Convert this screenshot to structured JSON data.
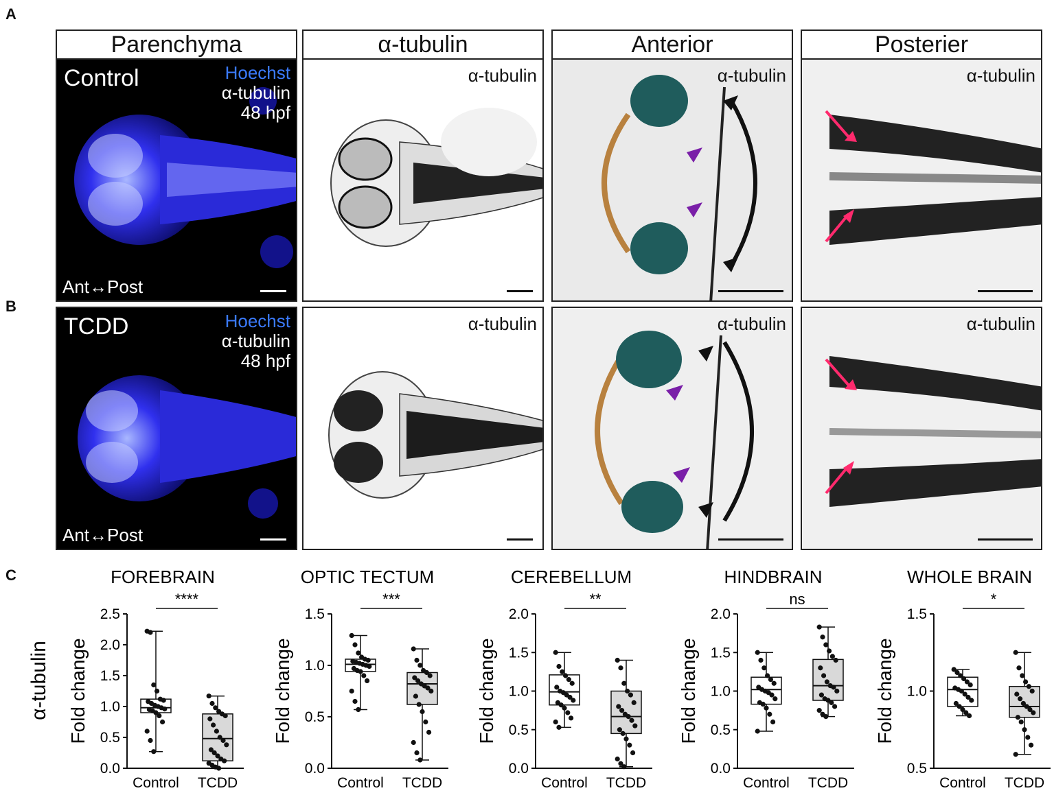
{
  "panel_letters": {
    "a": "A",
    "b": "B",
    "c": "C"
  },
  "headers": {
    "col1": "Parenchyma",
    "col2": "α-tubulin",
    "col3": "Anterior",
    "col4": "Posterier"
  },
  "rows": {
    "a": {
      "condition": "Control",
      "stain1": "Hoechst",
      "stain2": "α-tubulin",
      "stage": "48 hpf",
      "axis": "Ant↔Post",
      "inset_label": "α-tubulin"
    },
    "b": {
      "condition": "TCDD",
      "stain1": "Hoechst",
      "stain2": "α-tubulin",
      "stage": "48 hpf",
      "axis": "Ant↔Post",
      "inset_label": "α-tubulin"
    }
  },
  "colors": {
    "hoechst": "#3b7bff",
    "brain_blue": "#2626e6",
    "teal_region": "#1f5c5c",
    "brown_outline": "#b8813f",
    "purple_arrow": "#7a1fa8",
    "pink_arrow": "#ff2a6d",
    "box_fill": "#d9d9d9"
  },
  "row_axis_label": "α-tubulin",
  "chart_data": [
    {
      "type": "box",
      "title": "FOREBRAIN",
      "ylabel": "Fold change",
      "categories": [
        "Control",
        "TCDD"
      ],
      "ylim": [
        0.0,
        2.5
      ],
      "yticks": [
        "0.0",
        "0.5",
        "1.0",
        "1.5",
        "2.0",
        "2.5"
      ],
      "significance": "****",
      "boxes": [
        {
          "min": 0.27,
          "q1": 0.9,
          "median": 0.98,
          "q3": 1.12,
          "max": 2.22
        },
        {
          "min": 0.0,
          "q1": 0.12,
          "median": 0.48,
          "q3": 0.88,
          "max": 1.17
        }
      ],
      "points": [
        [
          2.22,
          2.2,
          1.35,
          1.25,
          1.12,
          1.1,
          1.08,
          1.05,
          1.02,
          1.0,
          0.98,
          0.96,
          0.95,
          0.93,
          0.9,
          0.85,
          0.75,
          0.6,
          0.45,
          0.27
        ],
        [
          1.17,
          1.05,
          0.98,
          0.92,
          0.88,
          0.85,
          0.8,
          0.7,
          0.6,
          0.5,
          0.45,
          0.38,
          0.3,
          0.25,
          0.2,
          0.15,
          0.12,
          0.08,
          0.05,
          0.02,
          0.0
        ]
      ]
    },
    {
      "type": "box",
      "title": "OPTIC TECTUM",
      "ylabel": "Fold change",
      "categories": [
        "Control",
        "TCDD"
      ],
      "ylim": [
        0.0,
        1.5
      ],
      "yticks": [
        "0.0",
        "0.5",
        "1.0",
        "1.5"
      ],
      "significance": "***",
      "boxes": [
        {
          "min": 0.57,
          "q1": 0.94,
          "median": 1.01,
          "q3": 1.06,
          "max": 1.29
        },
        {
          "min": 0.08,
          "q1": 0.62,
          "median": 0.82,
          "q3": 0.93,
          "max": 1.16
        }
      ],
      "points": [
        [
          1.29,
          1.2,
          1.12,
          1.08,
          1.06,
          1.05,
          1.04,
          1.03,
          1.02,
          1.01,
          1.0,
          0.99,
          0.97,
          0.95,
          0.94,
          0.9,
          0.85,
          0.75,
          0.65,
          0.57
        ],
        [
          1.16,
          1.05,
          1.0,
          0.95,
          0.93,
          0.9,
          0.88,
          0.85,
          0.82,
          0.8,
          0.78,
          0.75,
          0.7,
          0.62,
          0.55,
          0.45,
          0.35,
          0.25,
          0.15,
          0.08
        ]
      ]
    },
    {
      "type": "box",
      "title": "CEREBELLUM",
      "ylabel": "Fold change",
      "categories": [
        "Control",
        "TCDD"
      ],
      "ylim": [
        0.0,
        2.0
      ],
      "yticks": [
        "0.0",
        "0.5",
        "1.0",
        "1.5",
        "2.0"
      ],
      "significance": "**",
      "boxes": [
        {
          "min": 0.53,
          "q1": 0.82,
          "median": 0.99,
          "q3": 1.21,
          "max": 1.5
        },
        {
          "min": 0.02,
          "q1": 0.45,
          "median": 0.67,
          "q3": 1.0,
          "max": 1.4
        }
      ],
      "points": [
        [
          1.5,
          1.32,
          1.25,
          1.2,
          1.15,
          1.1,
          1.05,
          1.0,
          0.98,
          0.95,
          0.92,
          0.88,
          0.85,
          0.82,
          0.78,
          0.72,
          0.65,
          0.6,
          0.53
        ],
        [
          1.4,
          1.3,
          1.1,
          1.0,
          0.95,
          0.85,
          0.8,
          0.75,
          0.7,
          0.67,
          0.62,
          0.55,
          0.5,
          0.45,
          0.38,
          0.3,
          0.2,
          0.12,
          0.06,
          0.02
        ]
      ]
    },
    {
      "type": "box",
      "title": "HINDBRAIN",
      "ylabel": "Fold change",
      "categories": [
        "Control",
        "TCDD"
      ],
      "ylim": [
        0.0,
        2.0
      ],
      "yticks": [
        "0.0",
        "0.5",
        "1.0",
        "1.5",
        "2.0"
      ],
      "significance": "ns",
      "boxes": [
        {
          "min": 0.48,
          "q1": 0.83,
          "median": 1.02,
          "q3": 1.18,
          "max": 1.5
        },
        {
          "min": 0.67,
          "q1": 0.88,
          "median": 1.07,
          "q3": 1.41,
          "max": 1.83
        }
      ],
      "points": [
        [
          1.5,
          1.4,
          1.3,
          1.2,
          1.15,
          1.1,
          1.05,
          1.02,
          1.0,
          0.98,
          0.95,
          0.9,
          0.85,
          0.83,
          0.78,
          0.7,
          0.6,
          0.48
        ],
        [
          1.83,
          1.7,
          1.6,
          1.52,
          1.45,
          1.4,
          1.3,
          1.2,
          1.12,
          1.07,
          1.05,
          1.0,
          0.95,
          0.9,
          0.88,
          0.85,
          0.8,
          0.75,
          0.7,
          0.67
        ]
      ]
    },
    {
      "type": "box",
      "title": "WHOLE BRAIN",
      "ylabel": "Fold change",
      "categories": [
        "Control",
        "TCDD"
      ],
      "ylim": [
        0.5,
        1.5
      ],
      "yticks": [
        "0.5",
        "1.0",
        "1.5"
      ],
      "significance": "*",
      "boxes": [
        {
          "min": 0.84,
          "q1": 0.9,
          "median": 1.01,
          "q3": 1.09,
          "max": 1.14
        },
        {
          "min": 0.59,
          "q1": 0.83,
          "median": 0.9,
          "q3": 1.03,
          "max": 1.25
        }
      ],
      "points": [
        [
          1.14,
          1.12,
          1.1,
          1.08,
          1.06,
          1.04,
          1.02,
          1.01,
          1.0,
          0.98,
          0.96,
          0.94,
          0.92,
          0.9,
          0.88,
          0.86,
          0.84
        ],
        [
          1.25,
          1.15,
          1.1,
          1.06,
          1.03,
          1.0,
          0.98,
          0.95,
          0.92,
          0.9,
          0.88,
          0.86,
          0.83,
          0.8,
          0.75,
          0.7,
          0.65,
          0.59
        ]
      ]
    }
  ]
}
